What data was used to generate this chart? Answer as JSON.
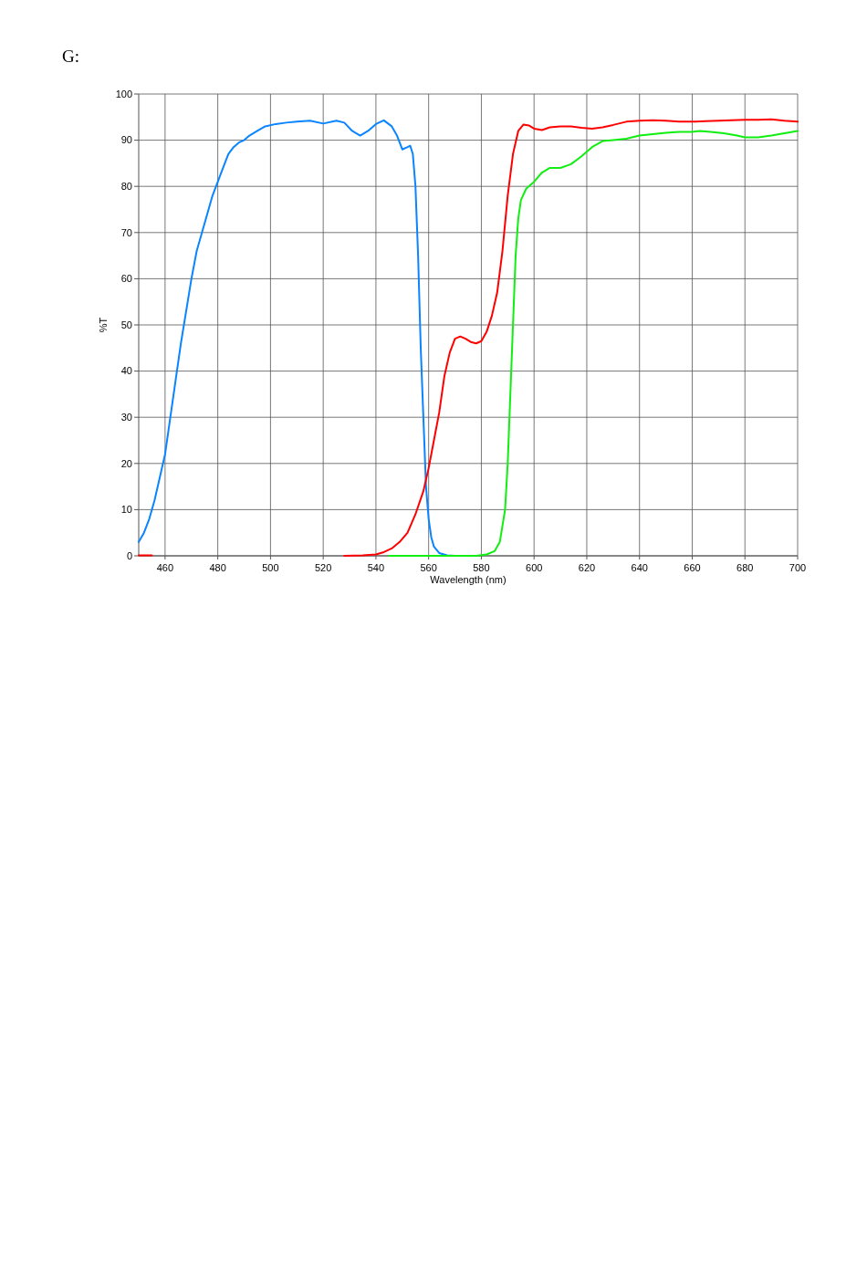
{
  "chart_data": {
    "type": "line",
    "title": "G:",
    "xlabel": "Wavelength (nm)",
    "ylabel": "%T",
    "xlim": [
      450,
      700
    ],
    "ylim": [
      0,
      100
    ],
    "xticks": [
      460,
      480,
      500,
      520,
      540,
      560,
      580,
      600,
      620,
      640,
      660,
      680,
      700
    ],
    "yticks": [
      0,
      10,
      20,
      30,
      40,
      50,
      60,
      70,
      80,
      90,
      100
    ],
    "grid": true,
    "marker": "none",
    "line_style": "solid",
    "series": [
      {
        "color": "#0a84ff",
        "x": [
          450,
          452,
          454,
          456,
          458,
          460,
          462,
          464,
          466,
          468,
          470,
          472,
          474,
          476,
          478,
          480,
          482,
          484,
          486,
          488,
          490,
          492,
          495,
          498,
          502,
          506,
          510,
          515,
          520,
          525,
          528,
          531,
          534,
          537,
          540,
          543,
          546,
          548,
          550,
          552,
          553,
          554,
          555,
          556,
          557,
          558,
          559,
          560,
          561,
          562,
          564,
          567,
          570
        ],
        "values": [
          3,
          5,
          8,
          12,
          17,
          22,
          30,
          38,
          46,
          53,
          60,
          66,
          70,
          74,
          78,
          81,
          84,
          87,
          88.5,
          89.5,
          90,
          91,
          92,
          93,
          93.5,
          93.8,
          94,
          94.2,
          93.6,
          94.2,
          93.8,
          92,
          91,
          92,
          93.5,
          94.3,
          93,
          91,
          88,
          88.5,
          88.8,
          87,
          80,
          65,
          45,
          30,
          15,
          8,
          4,
          2,
          0.6,
          0.1,
          0
        ]
      },
      {
        "color": "#ff0000",
        "x": [
          450,
          455
        ],
        "values": [
          0.1,
          0.1
        ]
      },
      {
        "color": "#ff0000",
        "x": [
          528,
          535,
          540,
          543,
          546,
          549,
          552,
          555,
          558,
          560,
          562,
          564,
          566,
          568,
          570,
          572,
          574,
          576,
          578,
          580,
          582,
          584,
          586,
          588,
          590,
          592,
          594,
          596,
          598,
          600,
          603,
          606,
          610,
          614,
          618,
          622,
          626,
          630,
          635,
          640,
          645,
          650,
          655,
          660,
          665,
          670,
          675,
          680,
          685,
          690,
          695,
          700
        ],
        "values": [
          0,
          0.1,
          0.3,
          0.8,
          1.6,
          3,
          5,
          9,
          14,
          19,
          25,
          31,
          39,
          44,
          47,
          47.5,
          47,
          46.3,
          46,
          46.5,
          48.5,
          52,
          57,
          66,
          78,
          87,
          92,
          93.4,
          93.2,
          92.5,
          92.2,
          92.8,
          93,
          93,
          92.7,
          92.5,
          92.8,
          93.3,
          94,
          94.2,
          94.3,
          94.2,
          94,
          94,
          94.1,
          94.2,
          94.3,
          94.4,
          94.4,
          94.5,
          94.2,
          94
        ]
      },
      {
        "color": "#11ee11",
        "x": [
          545,
          578,
          582,
          585,
          587,
          589,
          590,
          591,
          592,
          593,
          594,
          595,
          597,
          600,
          603,
          606,
          610,
          614,
          618,
          622,
          626,
          630,
          635,
          640,
          645,
          650,
          655,
          660,
          663,
          667,
          672,
          677,
          680,
          685,
          690,
          695,
          700
        ],
        "values": [
          0,
          0,
          0.3,
          1,
          3,
          10,
          20,
          35,
          50,
          65,
          73,
          77,
          79.5,
          81,
          83,
          84,
          84,
          84.8,
          86.5,
          88.5,
          89.8,
          90,
          90.3,
          91,
          91.3,
          91.6,
          91.8,
          91.8,
          92,
          91.8,
          91.5,
          91,
          90.6,
          90.6,
          91,
          91.5,
          92
        ]
      }
    ]
  }
}
